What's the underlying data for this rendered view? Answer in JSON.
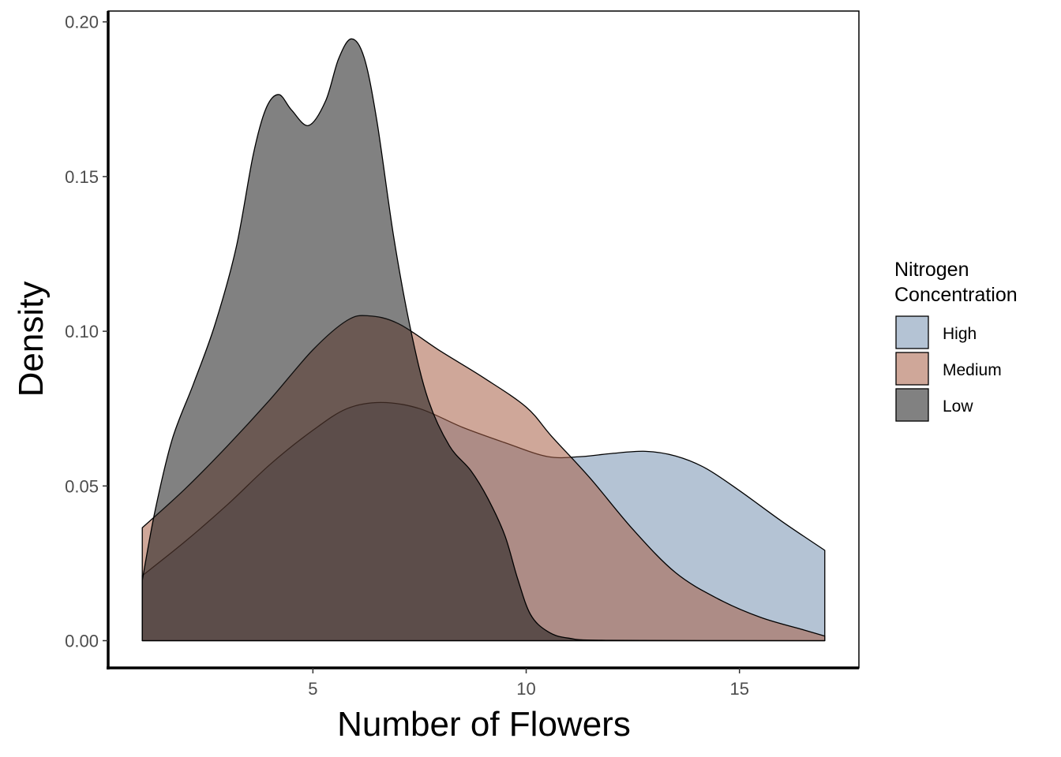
{
  "chart_data": {
    "type": "area",
    "subtype": "density",
    "xlabel": "Number of Flowers",
    "ylabel": "Density",
    "xlim": [
      0.2,
      17.8
    ],
    "ylim": [
      -0.0088,
      0.2035
    ],
    "x_ticks": [
      5,
      10,
      15
    ],
    "y_ticks": [
      0.0,
      0.05,
      0.1,
      0.15,
      0.2
    ],
    "x_tick_labels": [
      "5",
      "10",
      "15"
    ],
    "y_tick_labels": [
      "0.00",
      "0.05",
      "0.10",
      "0.15",
      "0.20"
    ],
    "grid": false,
    "legend": {
      "title_lines": [
        "Nitrogen",
        "Concentration"
      ],
      "placement": "right"
    },
    "series": [
      {
        "name": "High",
        "color": "#7692b1",
        "points": [
          [
            1,
            0.021
          ],
          [
            2,
            0.032
          ],
          [
            3,
            0.044
          ],
          [
            4,
            0.057
          ],
          [
            5,
            0.068
          ],
          [
            5.8,
            0.075
          ],
          [
            6.6,
            0.077
          ],
          [
            7.5,
            0.075
          ],
          [
            8.5,
            0.069
          ],
          [
            9.5,
            0.064
          ],
          [
            10.5,
            0.0595
          ],
          [
            11.3,
            0.0595
          ],
          [
            12,
            0.0605
          ],
          [
            12.8,
            0.0612
          ],
          [
            13.5,
            0.0597
          ],
          [
            14.2,
            0.0558
          ],
          [
            15,
            0.0485
          ],
          [
            16,
            0.0385
          ],
          [
            17,
            0.0292
          ]
        ]
      },
      {
        "name": "Medium",
        "color": "#a85e45",
        "points": [
          [
            1,
            0.0365
          ],
          [
            2,
            0.049
          ],
          [
            3,
            0.063
          ],
          [
            4,
            0.078
          ],
          [
            5,
            0.094
          ],
          [
            5.8,
            0.1035
          ],
          [
            6.3,
            0.105
          ],
          [
            7,
            0.1025
          ],
          [
            8,
            0.0935
          ],
          [
            9,
            0.085
          ],
          [
            10,
            0.0755
          ],
          [
            10.6,
            0.066
          ],
          [
            11.5,
            0.0525
          ],
          [
            12.5,
            0.036
          ],
          [
            13.5,
            0.022
          ],
          [
            14.5,
            0.0135
          ],
          [
            15.5,
            0.0075
          ],
          [
            16.5,
            0.0035
          ],
          [
            17,
            0.0015
          ]
        ]
      },
      {
        "name": "Low",
        "color": "#1a1a1a",
        "points": [
          [
            1,
            0.0195
          ],
          [
            1.3,
            0.042
          ],
          [
            1.7,
            0.065
          ],
          [
            2.2,
            0.083
          ],
          [
            2.7,
            0.102
          ],
          [
            3.2,
            0.127
          ],
          [
            3.6,
            0.157
          ],
          [
            3.9,
            0.172
          ],
          [
            4.2,
            0.1765
          ],
          [
            4.5,
            0.1715
          ],
          [
            4.9,
            0.1665
          ],
          [
            5.3,
            0.1745
          ],
          [
            5.6,
            0.188
          ],
          [
            5.9,
            0.1945
          ],
          [
            6.2,
            0.1885
          ],
          [
            6.5,
            0.168
          ],
          [
            6.9,
            0.13
          ],
          [
            7.3,
            0.1
          ],
          [
            7.7,
            0.078
          ],
          [
            8.2,
            0.063
          ],
          [
            8.7,
            0.055
          ],
          [
            9.1,
            0.046
          ],
          [
            9.5,
            0.034
          ],
          [
            9.8,
            0.02
          ],
          [
            10.1,
            0.0085
          ],
          [
            10.5,
            0.003
          ],
          [
            11,
            0.0008
          ],
          [
            12,
            0.0001
          ],
          [
            17,
            0.0
          ]
        ]
      }
    ]
  }
}
